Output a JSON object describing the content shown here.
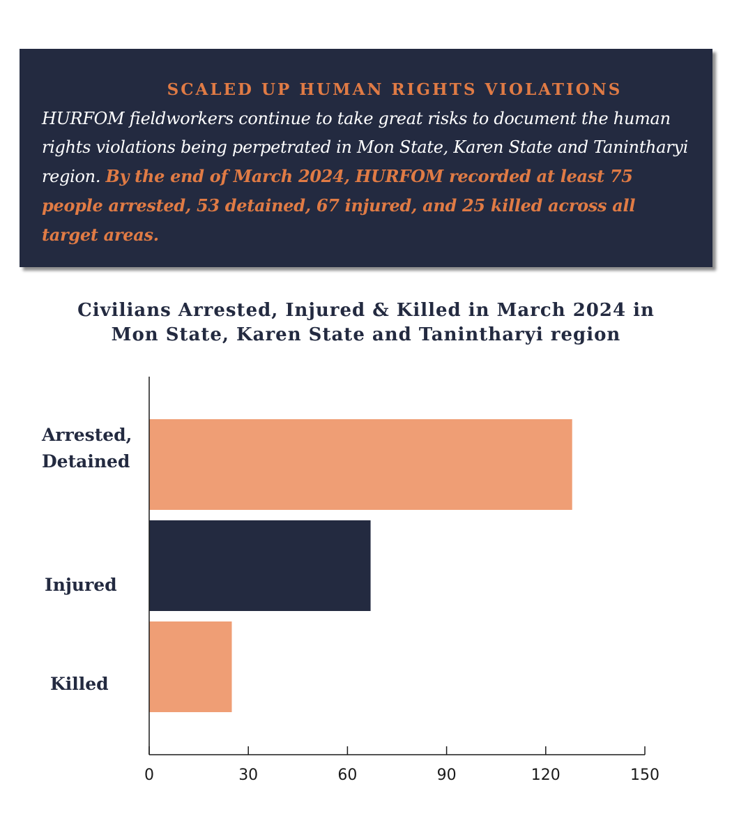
{
  "info_box": {
    "heading": "SCALED UP HUMAN RIGHTS VIOLATIONS",
    "text_plain": "HURFOM fieldworkers continue to take great risks to document the human rights violations being perpetrated in Mon State, Karen State and Tanintharyi region.",
    "text_highlight": "By the end of  March 2024, HURFOM recorded at least 75 people arrested, 53 detained, 67 injured, and 25 killed across all target areas."
  },
  "chart_data": {
    "type": "bar",
    "orientation": "horizontal",
    "title": [
      "Civilians Arrested, Injured & Killed in March 2024 in",
      "Mon State, Karen State and Tanintharyi region"
    ],
    "categories": [
      "Arrested,\nDetained",
      "Injured",
      "Killed"
    ],
    "values": [
      128,
      67,
      25
    ],
    "colors": [
      "#ef9e75",
      "#232a40",
      "#ef9e75"
    ],
    "xlim": [
      0,
      150
    ],
    "xticks": [
      0,
      30,
      60,
      90,
      120,
      150
    ],
    "xlabel": "",
    "ylabel": "",
    "grid": false,
    "legend": "none"
  }
}
